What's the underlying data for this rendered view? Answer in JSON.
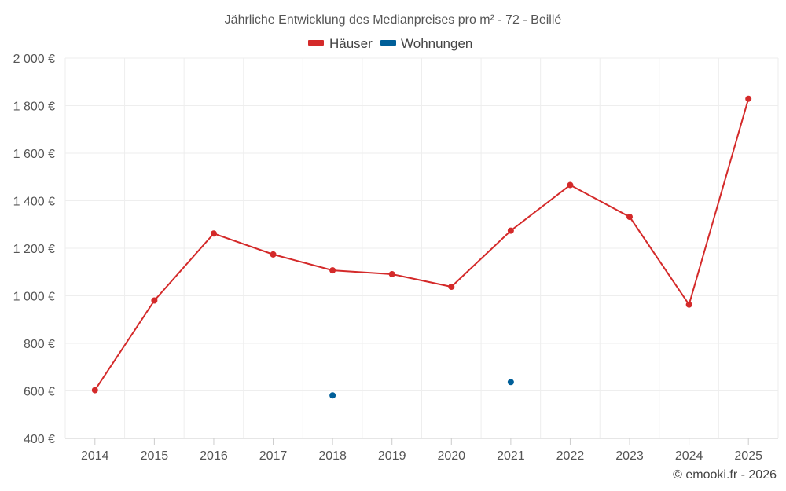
{
  "chart_data": {
    "type": "line",
    "title": "Jährliche Entwicklung des Medianpreises pro m² - 72 - Beillé",
    "categories": [
      "2014",
      "2015",
      "2016",
      "2017",
      "2018",
      "2019",
      "2020",
      "2021",
      "2022",
      "2023",
      "2024",
      "2025"
    ],
    "y_tick_labels": [
      "400 €",
      "600 €",
      "800 €",
      "1 000 €",
      "1 200 €",
      "1 400 €",
      "1 600 €",
      "1 800 €",
      "2 000 €"
    ],
    "y_ticks": [
      400,
      600,
      800,
      1000,
      1200,
      1400,
      1600,
      1800,
      2000
    ],
    "ylim": [
      400,
      2000
    ],
    "grid": true,
    "legend_position": "top-center",
    "series": [
      {
        "name": "Häuser",
        "color": "#d42a2a",
        "line": true,
        "values": [
          603,
          980,
          1262,
          1174,
          1107,
          1091,
          1038,
          1274,
          1466,
          1332,
          963,
          1829
        ]
      },
      {
        "name": "Wohnungen",
        "color": "#005f99",
        "line": false,
        "values": [
          null,
          null,
          null,
          null,
          581,
          null,
          null,
          637,
          null,
          null,
          null,
          null
        ]
      }
    ]
  },
  "credit": "© emooki.fr - 2026"
}
